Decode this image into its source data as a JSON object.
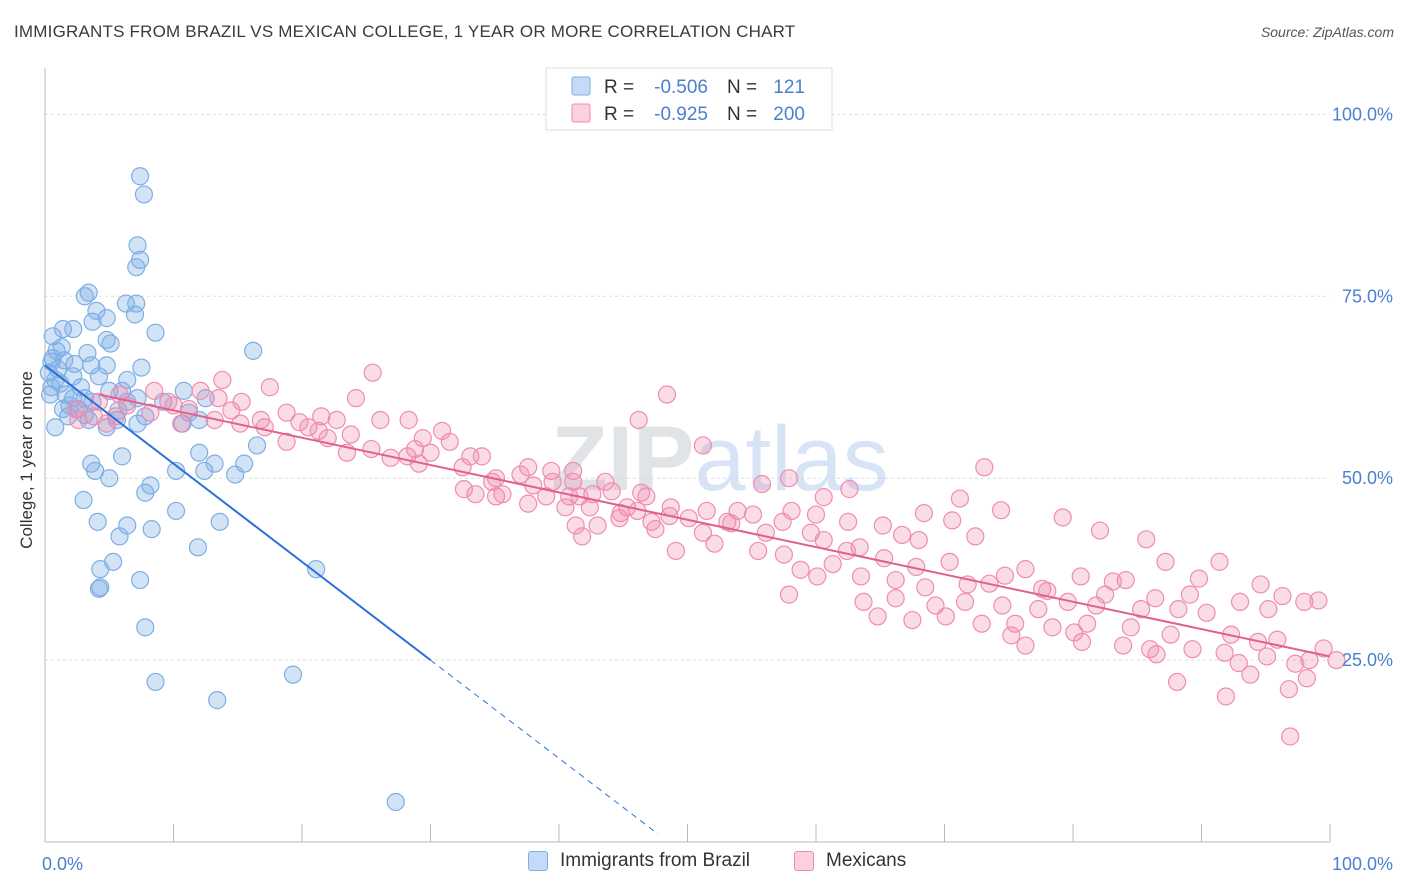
{
  "title": "IMMIGRANTS FROM BRAZIL VS MEXICAN COLLEGE, 1 YEAR OR MORE CORRELATION CHART",
  "source": "Source: ZipAtlas.com",
  "watermark": "ZIPatlas",
  "colors": {
    "blue": "#7eaee6",
    "blue_line": "#2a72d8",
    "pink": "#f08cb0",
    "pink_line": "#e0608e",
    "tick_text": "#4b7fd0"
  },
  "legend_box": {
    "rows": [
      {
        "r_label": "R =",
        "r_value": "-0.506",
        "n_label": "N =",
        "n_value": "121"
      },
      {
        "r_label": "R =",
        "r_value": "-0.925",
        "n_label": "N =",
        "n_value": "200"
      }
    ]
  },
  "legend_bottom": {
    "items": [
      "Immigrants from Brazil",
      "Mexicans"
    ]
  },
  "chart_data": {
    "type": "scatter",
    "xlabel": "",
    "ylabel": "College, 1 year or more",
    "xlim": [
      0,
      100
    ],
    "ylim": [
      0,
      105
    ],
    "x_tick_labels": [
      {
        "v": 0,
        "label": "0.0%"
      },
      {
        "v": 100,
        "label": "100.0%"
      }
    ],
    "y_tick_labels": [
      {
        "v": 25,
        "label": "25.0%"
      },
      {
        "v": 50,
        "label": "50.0%"
      },
      {
        "v": 75,
        "label": "75.0%"
      },
      {
        "v": 100,
        "label": "100.0%"
      }
    ],
    "grid": true,
    "series": [
      {
        "name": "Immigrants from Brazil",
        "color": "#7eaee6",
        "trend": {
          "x0": 0,
          "y0": 65.5,
          "x1": 30,
          "y1": 25.0,
          "dash_to_x": 47.7
        },
        "points": [
          [
            7.4,
            91.5
          ],
          [
            7.7,
            89
          ],
          [
            7.2,
            82
          ],
          [
            7.4,
            80
          ],
          [
            7.1,
            79
          ],
          [
            3.4,
            75.5
          ],
          [
            3.1,
            75
          ],
          [
            6.3,
            74
          ],
          [
            7.1,
            74
          ],
          [
            4.0,
            73
          ],
          [
            7.0,
            72.5
          ],
          [
            4.8,
            72
          ],
          [
            3.7,
            71.5
          ],
          [
            1.4,
            70.5
          ],
          [
            2.2,
            70.5
          ],
          [
            8.6,
            70
          ],
          [
            0.6,
            69.5
          ],
          [
            4.8,
            69
          ],
          [
            5.1,
            68.5
          ],
          [
            1.3,
            68
          ],
          [
            0.9,
            67.5
          ],
          [
            3.3,
            67.2
          ],
          [
            16.2,
            67.5
          ],
          [
            0.6,
            66.5
          ],
          [
            1.5,
            66.2
          ],
          [
            0.5,
            66
          ],
          [
            2.3,
            65.7
          ],
          [
            3.6,
            65.5
          ],
          [
            4.8,
            65.5
          ],
          [
            1.0,
            65
          ],
          [
            7.5,
            65.2
          ],
          [
            0.3,
            64.5
          ],
          [
            2.2,
            64
          ],
          [
            4.2,
            64
          ],
          [
            0.8,
            63.5
          ],
          [
            6.4,
            63.5
          ],
          [
            1.2,
            63
          ],
          [
            2.8,
            62.5
          ],
          [
            5.0,
            62
          ],
          [
            0.5,
            62.5
          ],
          [
            10.8,
            62
          ],
          [
            6.0,
            62
          ],
          [
            1.6,
            61.5
          ],
          [
            3.1,
            61
          ],
          [
            7.2,
            61
          ],
          [
            12.5,
            61
          ],
          [
            0.4,
            61.5
          ],
          [
            2.2,
            61
          ],
          [
            3.7,
            60.5
          ],
          [
            1.9,
            60
          ],
          [
            6.4,
            60.5
          ],
          [
            9.2,
            60.5
          ],
          [
            2.6,
            59.5
          ],
          [
            1.4,
            59.5
          ],
          [
            5.7,
            59.3
          ],
          [
            11.2,
            59
          ],
          [
            3.1,
            58.7
          ],
          [
            7.8,
            58.5
          ],
          [
            1.8,
            58.5
          ],
          [
            3.4,
            58
          ],
          [
            12.0,
            58
          ],
          [
            5.6,
            58
          ],
          [
            7.2,
            57.5
          ],
          [
            10.7,
            57.5
          ],
          [
            4.8,
            57
          ],
          [
            0.8,
            57
          ],
          [
            16.5,
            54.5
          ],
          [
            3.6,
            52
          ],
          [
            13.2,
            52
          ],
          [
            15.5,
            52
          ],
          [
            12.0,
            53.5
          ],
          [
            6.0,
            53
          ],
          [
            3.9,
            51
          ],
          [
            10.2,
            51
          ],
          [
            12.4,
            51
          ],
          [
            14.8,
            50.5
          ],
          [
            5.0,
            50
          ],
          [
            8.2,
            49
          ],
          [
            3.0,
            47
          ],
          [
            7.8,
            48
          ],
          [
            10.2,
            45.5
          ],
          [
            4.1,
            44
          ],
          [
            13.6,
            44
          ],
          [
            6.4,
            43.5
          ],
          [
            8.3,
            43
          ],
          [
            5.8,
            42
          ],
          [
            5.3,
            38.5
          ],
          [
            11.9,
            40.5
          ],
          [
            4.3,
            37.5
          ],
          [
            21.1,
            37.5
          ],
          [
            7.4,
            36
          ],
          [
            4.3,
            35
          ],
          [
            4.2,
            34.8
          ],
          [
            7.8,
            29.5
          ],
          [
            19.3,
            23
          ],
          [
            8.6,
            22
          ],
          [
            13.4,
            19.5
          ],
          [
            27.3,
            5.5
          ]
        ]
      },
      {
        "name": "Mexicans",
        "color": "#f08cb0",
        "trend": {
          "x0": 4.2,
          "y0": 61.5,
          "x1": 100,
          "y1": 25.5
        },
        "points": [
          [
            25.5,
            64.5
          ],
          [
            13.8,
            63.5
          ],
          [
            17.5,
            62.5
          ],
          [
            8.5,
            62
          ],
          [
            12.1,
            62
          ],
          [
            5.8,
            61.5
          ],
          [
            13.5,
            61
          ],
          [
            24.2,
            61
          ],
          [
            15.3,
            60.5
          ],
          [
            4.2,
            60.5
          ],
          [
            6.4,
            60
          ],
          [
            9.6,
            60.5
          ],
          [
            10.0,
            60
          ],
          [
            2.4,
            59.5
          ],
          [
            11.2,
            59.5
          ],
          [
            14.5,
            59.3
          ],
          [
            18.8,
            59
          ],
          [
            8.2,
            59
          ],
          [
            5.5,
            58.5
          ],
          [
            3.8,
            58.5
          ],
          [
            21.5,
            58.5
          ],
          [
            26.1,
            58
          ],
          [
            2.6,
            58
          ],
          [
            13.2,
            58
          ],
          [
            16.8,
            58
          ],
          [
            22.7,
            58
          ],
          [
            28.3,
            58
          ],
          [
            19.8,
            57.7
          ],
          [
            15.2,
            57.5
          ],
          [
            4.8,
            57.5
          ],
          [
            10.6,
            57.5
          ],
          [
            17.1,
            57
          ],
          [
            20.5,
            57
          ],
          [
            21.3,
            56.5
          ],
          [
            23.8,
            56
          ],
          [
            22.0,
            55.5
          ],
          [
            30.9,
            56.5
          ],
          [
            29.4,
            55.5
          ],
          [
            31.5,
            55
          ],
          [
            28.8,
            54
          ],
          [
            25.4,
            54
          ],
          [
            18.8,
            55
          ],
          [
            23.5,
            53.5
          ],
          [
            28.2,
            53
          ],
          [
            33.1,
            53
          ],
          [
            30.0,
            53.5
          ],
          [
            34.0,
            53
          ],
          [
            26.9,
            52.8
          ],
          [
            32.5,
            51.5
          ],
          [
            37.6,
            51.5
          ],
          [
            39.4,
            51
          ],
          [
            41.1,
            51
          ],
          [
            37.0,
            50.5
          ],
          [
            29.1,
            52
          ],
          [
            35.1,
            50
          ],
          [
            34.8,
            49.5
          ],
          [
            38.0,
            49
          ],
          [
            39.5,
            49.5
          ],
          [
            41.1,
            49.5
          ],
          [
            43.6,
            49.5
          ],
          [
            32.6,
            48.5
          ],
          [
            33.5,
            47.8
          ],
          [
            35.1,
            47.5
          ],
          [
            39.0,
            47.5
          ],
          [
            40.8,
            47.5
          ],
          [
            41.6,
            47.5
          ],
          [
            46.4,
            48
          ],
          [
            46.8,
            47.5
          ],
          [
            37.6,
            46.5
          ],
          [
            40.5,
            46
          ],
          [
            42.4,
            46
          ],
          [
            45.3,
            46
          ],
          [
            46.1,
            45.5
          ],
          [
            48.7,
            46
          ],
          [
            51.5,
            45.5
          ],
          [
            53.9,
            45.5
          ],
          [
            55.1,
            45
          ],
          [
            58.1,
            45.5
          ],
          [
            60.0,
            45
          ],
          [
            44.7,
            44.5
          ],
          [
            50.1,
            44.5
          ],
          [
            47.2,
            44
          ],
          [
            53.1,
            44
          ],
          [
            57.4,
            44
          ],
          [
            62.5,
            44
          ],
          [
            65.2,
            43.5
          ],
          [
            41.3,
            43.5
          ],
          [
            43.0,
            43.5
          ],
          [
            47.5,
            43
          ],
          [
            51.2,
            42.5
          ],
          [
            56.1,
            42.5
          ],
          [
            59.6,
            42.5
          ],
          [
            60.6,
            41.5
          ],
          [
            63.4,
            40.5
          ],
          [
            72.4,
            42
          ],
          [
            68.0,
            41.5
          ],
          [
            52.1,
            41
          ],
          [
            49.1,
            40
          ],
          [
            55.5,
            40
          ],
          [
            57.5,
            39.5
          ],
          [
            62.4,
            40
          ],
          [
            65.3,
            39
          ],
          [
            70.4,
            38.5
          ],
          [
            76.3,
            37.5
          ],
          [
            80.6,
            36.5
          ],
          [
            84.1,
            36
          ],
          [
            87.2,
            38.5
          ],
          [
            91.4,
            38.5
          ],
          [
            60.1,
            36.5
          ],
          [
            63.5,
            36.5
          ],
          [
            66.2,
            36
          ],
          [
            68.5,
            35
          ],
          [
            73.5,
            35.5
          ],
          [
            78.0,
            34.5
          ],
          [
            82.5,
            34
          ],
          [
            86.4,
            33.5
          ],
          [
            89.1,
            34
          ],
          [
            93.0,
            33
          ],
          [
            57.9,
            34
          ],
          [
            63.7,
            33
          ],
          [
            66.2,
            33.5
          ],
          [
            69.3,
            32.5
          ],
          [
            71.6,
            33
          ],
          [
            74.5,
            32.5
          ],
          [
            77.3,
            32
          ],
          [
            79.6,
            33
          ],
          [
            81.8,
            32.5
          ],
          [
            85.3,
            32
          ],
          [
            88.2,
            32
          ],
          [
            90.4,
            31.5
          ],
          [
            95.2,
            32
          ],
          [
            98.0,
            33
          ],
          [
            64.8,
            31
          ],
          [
            67.5,
            30.5
          ],
          [
            70.1,
            31
          ],
          [
            72.9,
            30
          ],
          [
            75.5,
            30
          ],
          [
            78.4,
            29.5
          ],
          [
            81.1,
            30
          ],
          [
            84.5,
            29.5
          ],
          [
            87.6,
            28.5
          ],
          [
            92.3,
            28.5
          ],
          [
            94.4,
            27.5
          ],
          [
            76.3,
            27
          ],
          [
            80.7,
            27.5
          ],
          [
            83.9,
            27
          ],
          [
            86.0,
            26.5
          ],
          [
            89.3,
            26.5
          ],
          [
            91.8,
            26
          ],
          [
            95.1,
            25.5
          ],
          [
            98.4,
            25
          ],
          [
            100.5,
            25
          ],
          [
            93.8,
            23
          ],
          [
            97.3,
            24.5
          ],
          [
            88.1,
            22
          ],
          [
            91.9,
            20
          ],
          [
            96.8,
            21
          ],
          [
            98.2,
            22.5
          ],
          [
            96.9,
            14.5
          ],
          [
            48.4,
            61.5
          ],
          [
            46.2,
            58
          ],
          [
            51.2,
            54.5
          ],
          [
            73.1,
            51.5
          ],
          [
            57.9,
            50
          ],
          [
            62.6,
            48.5
          ],
          [
            35.6,
            47.8
          ],
          [
            41.8,
            42
          ],
          [
            44.1,
            48.2
          ],
          [
            53.4,
            43.8
          ],
          [
            55.8,
            49.2
          ],
          [
            68.4,
            45.2
          ],
          [
            71.2,
            47.2
          ],
          [
            74.4,
            45.6
          ],
          [
            79.2,
            44.6
          ],
          [
            82.1,
            42.8
          ],
          [
            85.7,
            41.6
          ],
          [
            61.3,
            38.2
          ],
          [
            58.8,
            37.4
          ],
          [
            67.8,
            37.8
          ],
          [
            71.8,
            35.4
          ],
          [
            74.7,
            36.6
          ],
          [
            77.6,
            34.8
          ],
          [
            83.1,
            35.8
          ],
          [
            89.8,
            36.2
          ],
          [
            94.6,
            35.4
          ],
          [
            96.3,
            33.8
          ],
          [
            99.1,
            33.2
          ],
          [
            75.2,
            28.4
          ],
          [
            80.1,
            28.8
          ],
          [
            86.5,
            25.8
          ],
          [
            92.9,
            24.6
          ],
          [
            95.9,
            27.8
          ],
          [
            99.5,
            26.6
          ],
          [
            42.6,
            47.8
          ],
          [
            44.8,
            45.2
          ],
          [
            60.6,
            47.4
          ],
          [
            66.7,
            42.2
          ],
          [
            70.6,
            44.2
          ],
          [
            48.6,
            44.8
          ]
        ]
      }
    ]
  }
}
